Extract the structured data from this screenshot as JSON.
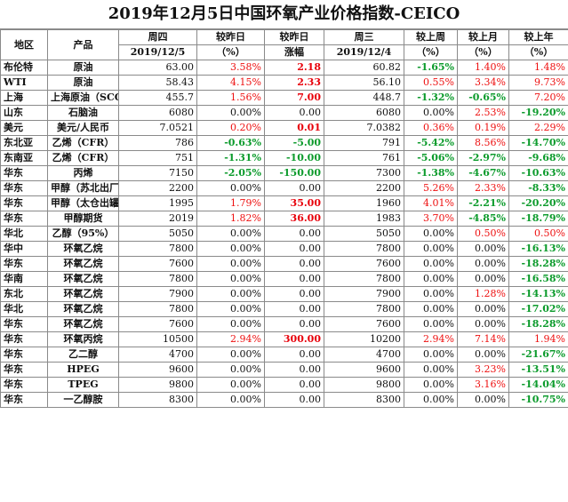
{
  "title": "2019年12月5日中国环氧产业价格指数-CEICO",
  "header": {
    "region": "地区",
    "product": "产品",
    "thursday": "周四",
    "date_thu": "2019/12/5",
    "vs_prev_day": "较昨日",
    "pct": "（%）",
    "vs_prev_day2": "较昨日",
    "change": "涨幅",
    "wednesday": "周三",
    "date_wed": "2019/12/4",
    "vs_last_week": "较上周",
    "pct_w": "（%）",
    "vs_last_month": "较上月",
    "pct_m": "（%）",
    "vs_last_year": "较上年",
    "pct_y": "（%）"
  },
  "rows": [
    {
      "region": "布伦特",
      "product": "原油",
      "thu": "63.00",
      "day_pct": "3.58%",
      "change": "2.18",
      "wed": "60.82",
      "week": "-1.65%",
      "month": "1.40%",
      "year": "1.48%"
    },
    {
      "region": "WTI",
      "product": "原油",
      "thu": "58.43",
      "day_pct": "4.15%",
      "change": "2.33",
      "wed": "56.10",
      "week": "0.55%",
      "month": "3.34%",
      "year": "9.73%"
    },
    {
      "region": "上海",
      "product": "上海原油（SCO）",
      "thu": "455.7",
      "day_pct": "1.56%",
      "change": "7.00",
      "wed": "448.7",
      "week": "-1.32%",
      "month": "-0.65%",
      "year": "7.20%"
    },
    {
      "region": "山东",
      "product": "石脑油",
      "thu": "6080",
      "day_pct": "0.00%",
      "change": "0.00",
      "wed": "6080",
      "week": "0.00%",
      "month": "2.53%",
      "year": "-19.20%"
    },
    {
      "region": "美元",
      "product": "美元/人民币",
      "thu": "7.0521",
      "day_pct": "0.20%",
      "change": "0.01",
      "wed": "7.0382",
      "week": "0.36%",
      "month": "0.19%",
      "year": "2.29%"
    },
    {
      "region": "东北亚",
      "product": "乙烯（CFR）",
      "thu": "786",
      "day_pct": "-0.63%",
      "change": "-5.00",
      "wed": "791",
      "week": "-5.42%",
      "month": "8.56%",
      "year": "-14.70%"
    },
    {
      "region": "东南亚",
      "product": "乙烯（CFR）",
      "thu": "751",
      "day_pct": "-1.31%",
      "change": "-10.00",
      "wed": "761",
      "week": "-5.06%",
      "month": "-2.97%",
      "year": "-9.68%"
    },
    {
      "region": "华东",
      "product": "丙烯",
      "thu": "7150",
      "day_pct": "-2.05%",
      "change": "-150.00",
      "wed": "7300",
      "week": "-1.38%",
      "month": "-4.67%",
      "year": "-10.63%"
    },
    {
      "region": "华东",
      "product": "甲醇（苏北出厂）",
      "thu": "2200",
      "day_pct": "0.00%",
      "change": "0.00",
      "wed": "2200",
      "week": "5.26%",
      "month": "2.33%",
      "year": "-8.33%"
    },
    {
      "region": "华东",
      "product": "甲醇（太仓出罐）",
      "thu": "1995",
      "day_pct": "1.79%",
      "change": "35.00",
      "wed": "1960",
      "week": "4.01%",
      "month": "-2.21%",
      "year": "-20.20%"
    },
    {
      "region": "华东",
      "product": "甲醇期货",
      "thu": "2019",
      "day_pct": "1.82%",
      "change": "36.00",
      "wed": "1983",
      "week": "3.70%",
      "month": "-4.85%",
      "year": "-18.79%"
    },
    {
      "region": "华北",
      "product": "乙醇（95%）",
      "thu": "5050",
      "day_pct": "0.00%",
      "change": "0.00",
      "wed": "5050",
      "week": "0.00%",
      "month": "0.50%",
      "year": "0.50%"
    },
    {
      "region": "华中",
      "product": "环氧乙烷",
      "thu": "7800",
      "day_pct": "0.00%",
      "change": "0.00",
      "wed": "7800",
      "week": "0.00%",
      "month": "0.00%",
      "year": "-16.13%"
    },
    {
      "region": "华东",
      "product": "环氧乙烷",
      "thu": "7600",
      "day_pct": "0.00%",
      "change": "0.00",
      "wed": "7600",
      "week": "0.00%",
      "month": "0.00%",
      "year": "-18.28%"
    },
    {
      "region": "华南",
      "product": "环氧乙烷",
      "thu": "7800",
      "day_pct": "0.00%",
      "change": "0.00",
      "wed": "7800",
      "week": "0.00%",
      "month": "0.00%",
      "year": "-16.58%"
    },
    {
      "region": "东北",
      "product": "环氧乙烷",
      "thu": "7900",
      "day_pct": "0.00%",
      "change": "0.00",
      "wed": "7900",
      "week": "0.00%",
      "month": "1.28%",
      "year": "-14.13%"
    },
    {
      "region": "华北",
      "product": "环氧乙烷",
      "thu": "7800",
      "day_pct": "0.00%",
      "change": "0.00",
      "wed": "7800",
      "week": "0.00%",
      "month": "0.00%",
      "year": "-17.02%"
    },
    {
      "region": "华东",
      "product": "环氧乙烷",
      "thu": "7600",
      "day_pct": "0.00%",
      "change": "0.00",
      "wed": "7600",
      "week": "0.00%",
      "month": "0.00%",
      "year": "-18.28%"
    },
    {
      "region": "华东",
      "product": "环氧丙烷",
      "thu": "10500",
      "day_pct": "2.94%",
      "change": "300.00",
      "wed": "10200",
      "week": "2.94%",
      "month": "7.14%",
      "year": "1.94%"
    },
    {
      "region": "华东",
      "product": "乙二醇",
      "thu": "4700",
      "day_pct": "0.00%",
      "change": "0.00",
      "wed": "4700",
      "week": "0.00%",
      "month": "0.00%",
      "year": "-21.67%"
    },
    {
      "region": "华东",
      "product": "HPEG",
      "thu": "9600",
      "day_pct": "0.00%",
      "change": "0.00",
      "wed": "9600",
      "week": "0.00%",
      "month": "3.23%",
      "year": "-13.51%"
    },
    {
      "region": "华东",
      "product": "TPEG",
      "thu": "9800",
      "day_pct": "0.00%",
      "change": "0.00",
      "wed": "9800",
      "week": "0.00%",
      "month": "3.16%",
      "year": "-14.04%"
    },
    {
      "region": "华东",
      "product": "一乙醇胺",
      "thu": "8300",
      "day_pct": "0.00%",
      "change": "0.00",
      "wed": "8300",
      "week": "0.00%",
      "month": "0.00%",
      "year": "-10.75%"
    }
  ],
  "colors": {
    "up": "#ee1010",
    "down": "#0c9b2c",
    "border": "#8a8a8a"
  }
}
